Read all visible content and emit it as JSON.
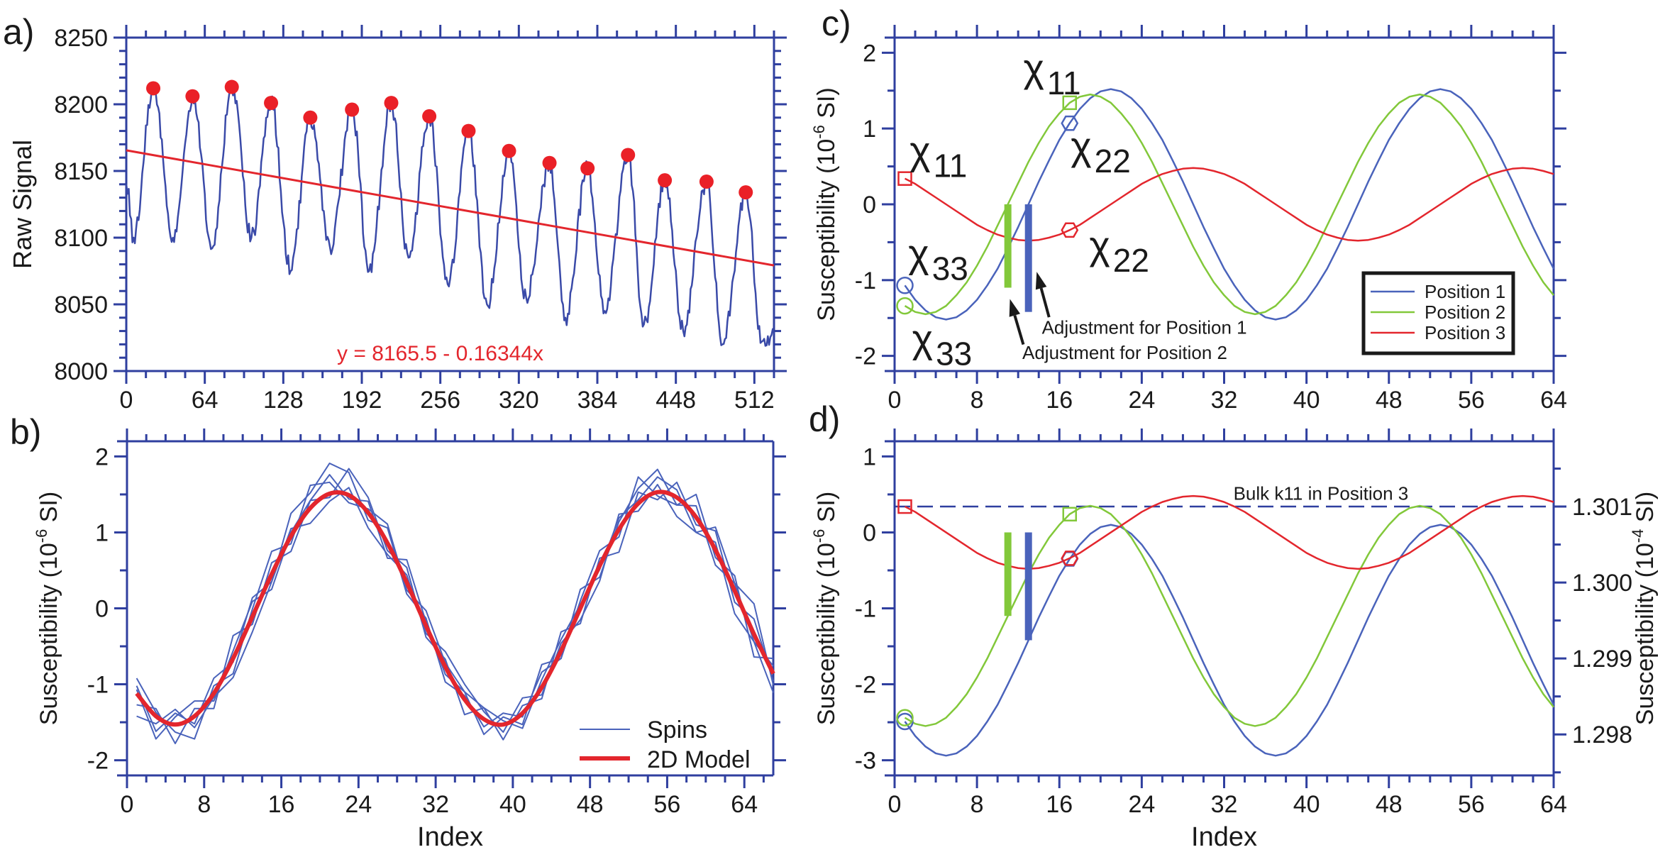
{
  "panel_labels": {
    "a": "a)",
    "b": "b)",
    "c": "c)",
    "d": "d)"
  },
  "colors": {
    "axis": "#2f3f9f",
    "signal": "#3a4aa8",
    "position1": "#4a63bb",
    "position2": "#82c83a",
    "position3": "#e3262d",
    "peaks": "#ea2027",
    "regression": "#e3262d",
    "model": "#e3262d",
    "spins": "#4a63bb",
    "annotation": "#1a1a1a"
  },
  "chart_data": [
    {
      "panel": "a",
      "type": "line",
      "ylabel": "Raw Signal",
      "xlim": [
        0,
        528
      ],
      "ylim": [
        8000,
        8250
      ],
      "x_ticks": [
        0,
        64,
        128,
        192,
        256,
        320,
        384,
        448,
        512
      ],
      "y_ticks": [
        8000,
        8050,
        8100,
        8150,
        8200,
        8250
      ],
      "grid": false,
      "signal": {
        "start_value": 8140,
        "end_value": 8028,
        "peaks": {
          "x": [
            22,
            54,
            86,
            118,
            150,
            184,
            216,
            247,
            279,
            312,
            345,
            376,
            409,
            439,
            473,
            505
          ],
          "y": [
            8212,
            8206,
            8213,
            8201,
            8190,
            8196,
            8201,
            8191,
            8180,
            8165,
            8156,
            8152,
            8162,
            8143,
            8142,
            8134
          ]
        },
        "troughs": {
          "x": [
            6,
            38,
            70,
            102,
            134,
            166,
            198,
            230,
            262,
            294,
            326,
            358,
            390,
            422,
            454,
            486,
            518
          ],
          "y": [
            8100,
            8100,
            8092,
            8100,
            8075,
            8093,
            8075,
            8085,
            8065,
            8050,
            8055,
            8040,
            8045,
            8035,
            8030,
            8020,
            8022
          ]
        }
      },
      "regression": {
        "intercept": 8165.5,
        "slope": -0.16344,
        "label": "y = 8165.5 - 0.16344x"
      }
    },
    {
      "panel": "b",
      "type": "line",
      "ylabel": {
        "prefix": "Susceptibility (10",
        "exponent": "-6",
        "suffix": " SI)"
      },
      "xlabel": "Index",
      "xlim": [
        0,
        67
      ],
      "ylim": [
        -2.2,
        2.2
      ],
      "x_ticks": [
        0,
        8,
        16,
        24,
        32,
        40,
        48,
        56,
        64
      ],
      "y_ticks": [
        -2,
        -1,
        0,
        1,
        2
      ],
      "legend": "bottom-right",
      "x": [
        1,
        3,
        5,
        7,
        9,
        11,
        13,
        15,
        17,
        19,
        21,
        23,
        25,
        27,
        29,
        31,
        33,
        35,
        37,
        39,
        41,
        43,
        45,
        47,
        49,
        51,
        53,
        55,
        57,
        59,
        61,
        63,
        65,
        67
      ],
      "series": [
        {
          "name": "Spins",
          "runs": [
            [
              -1.02,
              -1.62,
              -1.38,
              -1.52,
              -0.92,
              -0.71,
              0.14,
              0.35,
              1.25,
              1.52,
              1.91,
              1.79,
              1.16,
              1.06,
              0.19,
              -0.13,
              -0.97,
              -1.15,
              -1.56,
              -1.38,
              -1.43,
              -0.84,
              -0.66,
              0.25,
              0.41,
              1.14,
              1.58,
              1.83,
              1.36,
              1.35,
              0.57,
              0.33,
              -0.44,
              -0.76
            ],
            [
              -1.27,
              -1.32,
              -1.78,
              -1.32,
              -1.32,
              -0.36,
              -0.21,
              0.6,
              0.75,
              1.42,
              1.46,
              1.84,
              1.46,
              0.76,
              0.54,
              -0.38,
              -0.67,
              -1.4,
              -1.31,
              -1.73,
              -1.28,
              -1.19,
              -0.31,
              -0.2,
              0.66,
              0.74,
              1.53,
              1.43,
              1.66,
              1.1,
              1.02,
              0.08,
              -0.14,
              -0.96
            ],
            [
              -0.92,
              -1.37,
              -1.63,
              -1.72,
              -1.02,
              -0.86,
              -0.01,
              0.75,
              0.85,
              1.62,
              1.66,
              1.39,
              1.31,
              1.11,
              0.24,
              -0.03,
              -0.72,
              -1.1,
              -1.66,
              -1.43,
              -1.53,
              -0.74,
              -0.66,
              0.1,
              0.76,
              0.94,
              1.73,
              1.48,
              1.36,
              1.5,
              0.67,
              0.43,
              -0.64,
              -0.66
            ],
            [
              -1.42,
              -1.52,
              -1.33,
              -1.57,
              -1.17,
              -0.91,
              -0.31,
              0.35,
              1.05,
              1.12,
              1.41,
              1.59,
              1.06,
              0.71,
              0.44,
              -0.33,
              -0.57,
              -1.0,
              -1.36,
              -1.63,
              -1.18,
              -1.14,
              -0.46,
              -0.15,
              0.36,
              1.24,
              1.28,
              1.63,
              1.21,
              1.0,
              0.87,
              -0.07,
              -0.44,
              -1.11
            ],
            [
              -1.07,
              -1.72,
              -1.43,
              -1.22,
              -1.22,
              -0.56,
              0.09,
              0.25,
              1.0,
              1.42,
              1.76,
              1.44,
              1.41,
              0.66,
              0.64,
              -0.18,
              -0.87,
              -1.1,
              -1.31,
              -1.48,
              -1.58,
              -0.94,
              -0.41,
              0.05,
              0.51,
              1.19,
              1.43,
              1.73,
              1.56,
              1.0,
              1.07,
              0.33,
              0.06,
              -1.01
            ]
          ]
        },
        {
          "name": "2D Model",
          "values": [
            -1.12,
            -1.42,
            -1.53,
            -1.42,
            -1.12,
            -0.66,
            -0.11,
            0.45,
            0.95,
            1.32,
            1.51,
            1.49,
            1.26,
            0.86,
            0.34,
            -0.23,
            -0.77,
            -1.2,
            -1.46,
            -1.53,
            -1.38,
            -1.04,
            -0.56,
            0.0,
            0.56,
            1.04,
            1.38,
            1.53,
            1.46,
            1.2,
            0.77,
            0.23,
            -0.34,
            -0.86
          ]
        }
      ]
    },
    {
      "panel": "c",
      "type": "line",
      "ylabel": {
        "prefix": "Susceptibility (10",
        "exponent": "-6",
        "suffix": " SI)"
      },
      "xlim": [
        0,
        64
      ],
      "ylim": [
        -2.2,
        2.2
      ],
      "x_ticks": [
        0,
        8,
        16,
        24,
        32,
        40,
        48,
        56,
        64
      ],
      "y_ticks": [
        -2,
        -1,
        0,
        1,
        2
      ],
      "legend": "bottom-right",
      "x": [
        1,
        2,
        3,
        4,
        5,
        6,
        7,
        8,
        9,
        10,
        11,
        12,
        13,
        14,
        15,
        16,
        17,
        18,
        19,
        20,
        21,
        22,
        23,
        24,
        25,
        26,
        27,
        28,
        29,
        30,
        31,
        32,
        33,
        34,
        35,
        36,
        37,
        38,
        39,
        40,
        41,
        42,
        43,
        44,
        45,
        46,
        47,
        48,
        49,
        50,
        51,
        52,
        53,
        54,
        55,
        56,
        57,
        58,
        59,
        60,
        61,
        62,
        63,
        64
      ],
      "series": [
        {
          "name": "Position 1",
          "color_key": "position1",
          "values": [
            -1.07,
            -1.26,
            -1.4,
            -1.49,
            -1.52,
            -1.49,
            -1.4,
            -1.26,
            -1.07,
            -0.85,
            -0.58,
            -0.3,
            0,
            0.3,
            0.58,
            0.85,
            1.07,
            1.26,
            1.4,
            1.49,
            1.52,
            1.49,
            1.4,
            1.26,
            1.07,
            0.85,
            0.58,
            0.3,
            0,
            -0.3,
            -0.58,
            -0.85,
            -1.07,
            -1.26,
            -1.4,
            -1.49,
            -1.52,
            -1.49,
            -1.4,
            -1.26,
            -1.07,
            -0.85,
            -0.58,
            -0.3,
            0,
            0.3,
            0.58,
            0.85,
            1.07,
            1.26,
            1.4,
            1.49,
            1.52,
            1.49,
            1.4,
            1.26,
            1.07,
            0.85,
            0.58,
            0.3,
            0,
            -0.3,
            -0.58,
            -0.85
          ]
        },
        {
          "name": "Position 2",
          "color_key": "position2",
          "values": [
            -1.34,
            -1.42,
            -1.45,
            -1.42,
            -1.34,
            -1.2,
            -1.03,
            -0.81,
            -0.56,
            -0.28,
            0,
            0.28,
            0.56,
            0.81,
            1.03,
            1.2,
            1.34,
            1.42,
            1.45,
            1.42,
            1.34,
            1.2,
            1.03,
            0.81,
            0.56,
            0.28,
            0,
            -0.28,
            -0.56,
            -0.81,
            -1.03,
            -1.2,
            -1.34,
            -1.42,
            -1.45,
            -1.42,
            -1.34,
            -1.2,
            -1.03,
            -0.81,
            -0.56,
            -0.28,
            0,
            0.28,
            0.56,
            0.81,
            1.03,
            1.2,
            1.34,
            1.42,
            1.45,
            1.42,
            1.34,
            1.2,
            1.03,
            0.81,
            0.56,
            0.28,
            0,
            -0.28,
            -0.56,
            -0.81,
            -1.03,
            -1.2
          ]
        },
        {
          "name": "Position 3",
          "color_key": "position3",
          "values": [
            0.34,
            0.27,
            0.18,
            0.09,
            0,
            -0.09,
            -0.18,
            -0.27,
            -0.34,
            -0.4,
            -0.44,
            -0.47,
            -0.48,
            -0.47,
            -0.44,
            -0.4,
            -0.34,
            -0.27,
            -0.18,
            -0.09,
            0,
            0.09,
            0.18,
            0.27,
            0.34,
            0.4,
            0.44,
            0.47,
            0.48,
            0.47,
            0.44,
            0.4,
            0.34,
            0.27,
            0.18,
            0.09,
            0,
            -0.09,
            -0.18,
            -0.27,
            -0.34,
            -0.4,
            -0.44,
            -0.47,
            -0.48,
            -0.47,
            -0.44,
            -0.4,
            -0.34,
            -0.27,
            -0.18,
            -0.09,
            0,
            0.09,
            0.18,
            0.27,
            0.34,
            0.4,
            0.44,
            0.47,
            0.48,
            0.47,
            0.44,
            0.4
          ]
        }
      ],
      "markers": [
        {
          "shape": "square",
          "color_key": "position3",
          "x": 1,
          "y": 0.34
        },
        {
          "shape": "square",
          "color_key": "position2",
          "x": 17,
          "y": 1.34
        },
        {
          "shape": "hexagon",
          "color_key": "position1",
          "x": 17,
          "y": 1.07
        },
        {
          "shape": "hexagon",
          "color_key": "position3",
          "x": 17,
          "y": -0.34
        },
        {
          "shape": "circle",
          "color_key": "position1",
          "x": 1,
          "y": -1.07
        },
        {
          "shape": "circle",
          "color_key": "position2",
          "x": 1,
          "y": -1.34
        }
      ],
      "annotations": [
        {
          "symbol": "χ",
          "subscript": "11"
        },
        {
          "symbol": "χ",
          "subscript": "11"
        },
        {
          "symbol": "χ",
          "subscript": "22"
        },
        {
          "symbol": "χ",
          "subscript": "22"
        },
        {
          "symbol": "χ",
          "subscript": "33"
        },
        {
          "symbol": "χ",
          "subscript": "33"
        }
      ],
      "adjustments": [
        {
          "series": "Position 2",
          "color_key": "position2",
          "x": 11,
          "from": 0,
          "to": -1.1,
          "label": "Adjustment for Position 2"
        },
        {
          "series": "Position 1",
          "color_key": "position1",
          "x": 13,
          "from": 0,
          "to": -1.42,
          "label": "Adjustment for Position 1"
        }
      ]
    },
    {
      "panel": "d",
      "type": "line",
      "ylabel": {
        "prefix": "Susceptibility (10",
        "exponent": "-6",
        "suffix": " SI)"
      },
      "y2label": {
        "prefix": "Susceptibility (10",
        "exponent": "-4",
        "suffix": " SI)"
      },
      "xlabel": "Index",
      "xlim": [
        0,
        64
      ],
      "ylim": [
        -3.2,
        1.2
      ],
      "x_ticks": [
        0,
        8,
        16,
        24,
        32,
        40,
        48,
        56,
        64
      ],
      "y_ticks": [
        -3,
        -2,
        -1,
        0,
        1
      ],
      "y2lim": [
        1.29746,
        1.30186
      ],
      "y2_ticks": [
        1.298,
        1.299,
        1.3,
        1.301
      ],
      "y2_tick_labels": [
        "1.298",
        "1.299",
        "1.300",
        "1.301"
      ],
      "series_source": "Position curves of panel c shifted by the adjustments",
      "series_shift": {
        "Position 1": -1.42,
        "Position 2": -1.1,
        "Position 3": 0
      },
      "bulk_line": {
        "value": 0.34,
        "label": "Bulk k11 in Position 3"
      },
      "markers": [
        {
          "shape": "square",
          "color_key": "position3",
          "x": 1,
          "y": 0.34
        },
        {
          "shape": "square",
          "color_key": "position2",
          "x": 17,
          "y": 0.24
        },
        {
          "shape": "hexagon",
          "color_key": "position1",
          "x": 17,
          "y": -0.35
        },
        {
          "shape": "hexagon",
          "color_key": "position3",
          "x": 17,
          "y": -0.34
        },
        {
          "shape": "circle",
          "color_key": "position1",
          "x": 1,
          "y": -2.49
        },
        {
          "shape": "circle",
          "color_key": "position2",
          "x": 1,
          "y": -2.44
        }
      ],
      "adjustments": [
        {
          "color_key": "position2",
          "x": 11,
          "from": 0,
          "to": -1.1
        },
        {
          "color_key": "position1",
          "x": 13,
          "from": 0,
          "to": -1.42
        }
      ]
    }
  ]
}
